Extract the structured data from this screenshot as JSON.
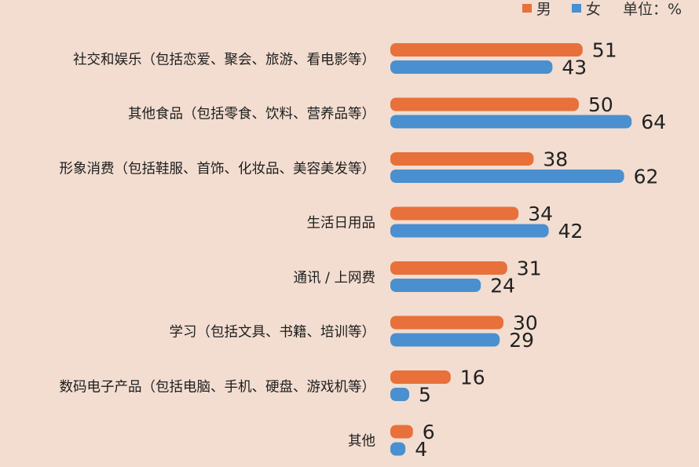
{
  "legend": {
    "male_label": "男",
    "female_label": "女",
    "unit": "单位：%"
  },
  "colors": {
    "male": "#e8703a",
    "female": "#4a8fd0"
  },
  "chart_data": {
    "type": "bar",
    "orientation": "horizontal",
    "categories": [
      "社交和娱乐（包括恋爱、聚会、旅游、看电影等）",
      "其他食品（包括零食、饮料、营养品等）",
      "形象消费（包括鞋服、首饰、化妆品、美容美发等）",
      "生活日用品",
      "通讯 / 上网费",
      "学习（包括文具、书籍、培训等）",
      "数码电子产品（包括电脑、手机、硬盘、游戏机等）",
      "其他"
    ],
    "series": [
      {
        "name": "男",
        "values": [
          51,
          50,
          38,
          34,
          31,
          30,
          16,
          6
        ]
      },
      {
        "name": "女",
        "values": [
          43,
          64,
          62,
          42,
          24,
          29,
          5,
          4
        ]
      }
    ],
    "legend_position": "top-right",
    "grid": false
  }
}
